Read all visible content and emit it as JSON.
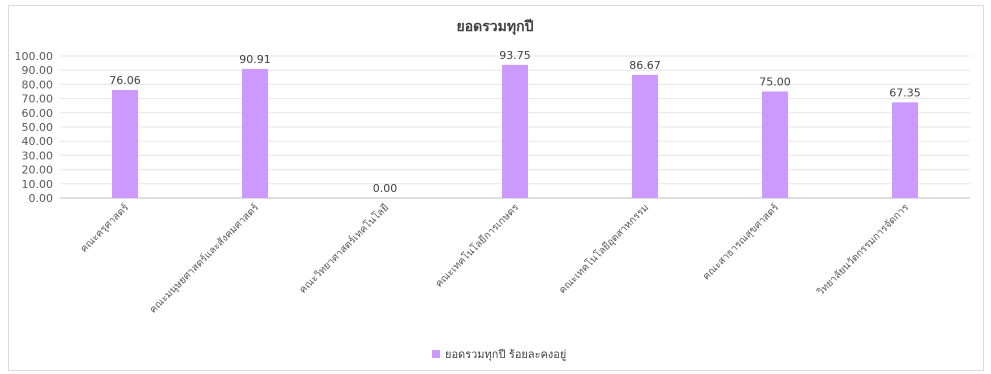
{
  "chart_data": {
    "type": "bar",
    "title": "ยอดรวมทุกปี",
    "xlabel": "",
    "ylabel": "",
    "ylim": [
      0,
      100
    ],
    "ytick_step": 10,
    "ytick_labels": [
      "0.00",
      "10.00",
      "20.00",
      "30.00",
      "40.00",
      "50.00",
      "60.00",
      "70.00",
      "80.00",
      "90.00",
      "100.00"
    ],
    "categories": [
      "คณะครุศาสตร์",
      "คณะมนุษยศาสตร์และสังคมศาสตร์",
      "คณะวิทยาศาสตร์เทคโนโลยี",
      "คณะเทคโนโลยีการเกษตร",
      "คณะเทคโนโลยีอุตสาหกรรม",
      "คณะสาธารณสุขศาสตร์",
      "วิทยาลัยนวัตกรรมการจัดการ"
    ],
    "series": [
      {
        "name": "ยอดรวมทุกปี ร้อยละคงอยู่",
        "color": "#cc99ff",
        "values": [
          76.06,
          90.91,
          0.0,
          93.75,
          86.67,
          75.0,
          67.35
        ],
        "labels": [
          "76.06",
          "90.91",
          "0.00",
          "93.75",
          "86.67",
          "75.00",
          "67.35"
        ]
      }
    ],
    "grid": true,
    "legend_position": "bottom"
  }
}
